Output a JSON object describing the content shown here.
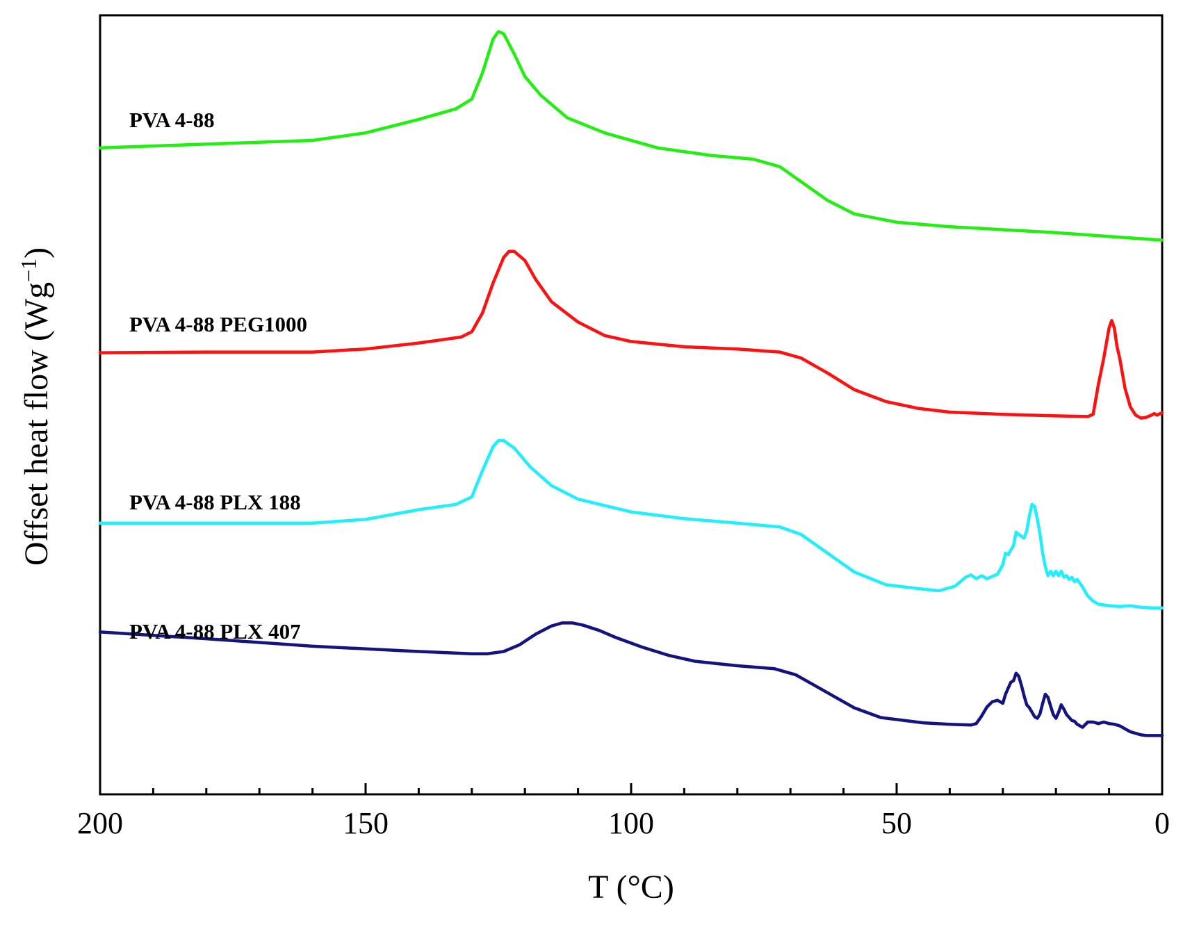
{
  "chart_data": {
    "type": "line",
    "title": "",
    "xlabel": "T (°C)",
    "ylabel": "Offset heat flow (Wg⁻¹)",
    "ylabel_base": "Offset heat flow (Wg",
    "ylabel_sup": "−1",
    "ylabel_end": ")",
    "xlim": [
      200,
      0
    ],
    "ylim": [
      0,
      1000
    ],
    "x_inverted": true,
    "xticks": [
      "200",
      "150",
      "100",
      "50",
      "0"
    ],
    "xtick_values": [
      200,
      150,
      100,
      50,
      0
    ],
    "minor_xtick_step": 10,
    "y_ticks_shown": false,
    "grid": false,
    "series": [
      {
        "name": "PVA 4-88",
        "color": "#22ee11",
        "points": [
          [
            200,
            840
          ],
          [
            180,
            845
          ],
          [
            160,
            850
          ],
          [
            150,
            860
          ],
          [
            140,
            878
          ],
          [
            133,
            892
          ],
          [
            130,
            905
          ],
          [
            128,
            940
          ],
          [
            126,
            985
          ],
          [
            125,
            995
          ],
          [
            124,
            992
          ],
          [
            122,
            965
          ],
          [
            120,
            935
          ],
          [
            117,
            910
          ],
          [
            112,
            880
          ],
          [
            105,
            860
          ],
          [
            95,
            840
          ],
          [
            85,
            830
          ],
          [
            77,
            825
          ],
          [
            72,
            815
          ],
          [
            68,
            795
          ],
          [
            63,
            770
          ],
          [
            58,
            752
          ],
          [
            50,
            741
          ],
          [
            40,
            735
          ],
          [
            30,
            731
          ],
          [
            20,
            727
          ],
          [
            10,
            722
          ],
          [
            0,
            717
          ]
        ]
      },
      {
        "name": "PVA 4-88 PEG1000",
        "color": "#ff1111",
        "points": [
          [
            200,
            567
          ],
          [
            180,
            568
          ],
          [
            160,
            568
          ],
          [
            150,
            572
          ],
          [
            140,
            580
          ],
          [
            132,
            588
          ],
          [
            130,
            595
          ],
          [
            128,
            620
          ],
          [
            126,
            660
          ],
          [
            124,
            694
          ],
          [
            123,
            702
          ],
          [
            122,
            702
          ],
          [
            120,
            690
          ],
          [
            118,
            665
          ],
          [
            115,
            635
          ],
          [
            110,
            608
          ],
          [
            105,
            590
          ],
          [
            100,
            582
          ],
          [
            90,
            575
          ],
          [
            80,
            572
          ],
          [
            72,
            568
          ],
          [
            68,
            560
          ],
          [
            63,
            540
          ],
          [
            58,
            518
          ],
          [
            52,
            502
          ],
          [
            46,
            493
          ],
          [
            40,
            488
          ],
          [
            30,
            485
          ],
          [
            20,
            483
          ],
          [
            14,
            482
          ],
          [
            13,
            485
          ],
          [
            12,
            525
          ],
          [
            11,
            560
          ],
          [
            10,
            600
          ],
          [
            9.5,
            610
          ],
          [
            9,
            600
          ],
          [
            8.5,
            575
          ],
          [
            8,
            560
          ],
          [
            7.5,
            540
          ],
          [
            7,
            520
          ],
          [
            6,
            495
          ],
          [
            5,
            484
          ],
          [
            4,
            480
          ],
          [
            3,
            481
          ],
          [
            2,
            484
          ],
          [
            1.5,
            486
          ],
          [
            1,
            484
          ],
          [
            0,
            487
          ]
        ]
      },
      {
        "name": "PVA 4-88 PLX 188",
        "color": "#22eeff",
        "points": [
          [
            200,
            340
          ],
          [
            180,
            340
          ],
          [
            160,
            340
          ],
          [
            150,
            345
          ],
          [
            140,
            358
          ],
          [
            133,
            365
          ],
          [
            130,
            375
          ],
          [
            128,
            410
          ],
          [
            126,
            442
          ],
          [
            125,
            450
          ],
          [
            124,
            450
          ],
          [
            122,
            440
          ],
          [
            119,
            415
          ],
          [
            115,
            390
          ],
          [
            110,
            372
          ],
          [
            100,
            355
          ],
          [
            90,
            346
          ],
          [
            80,
            340
          ],
          [
            72,
            335
          ],
          [
            68,
            325
          ],
          [
            63,
            300
          ],
          [
            58,
            275
          ],
          [
            52,
            258
          ],
          [
            45,
            252
          ],
          [
            42,
            250
          ],
          [
            39,
            256
          ],
          [
            37,
            268
          ],
          [
            36,
            271
          ],
          [
            35,
            266
          ],
          [
            34,
            270
          ],
          [
            33,
            266
          ],
          [
            31,
            272
          ],
          [
            30,
            285
          ],
          [
            29.5,
            300
          ],
          [
            29,
            298
          ],
          [
            28,
            310
          ],
          [
            27.5,
            328
          ],
          [
            27,
            325
          ],
          [
            26,
            320
          ],
          [
            25.5,
            330
          ],
          [
            25,
            350
          ],
          [
            24.5,
            365
          ],
          [
            24,
            362
          ],
          [
            23.5,
            345
          ],
          [
            23,
            325
          ],
          [
            22.5,
            300
          ],
          [
            22,
            282
          ],
          [
            21.5,
            270
          ],
          [
            21,
            276
          ],
          [
            20.5,
            270
          ],
          [
            20,
            276
          ],
          [
            19.5,
            270
          ],
          [
            19,
            276
          ],
          [
            18.5,
            268
          ],
          [
            18,
            270
          ],
          [
            17.5,
            265
          ],
          [
            17,
            268
          ],
          [
            16.5,
            262
          ],
          [
            16,
            265
          ],
          [
            15,
            255
          ],
          [
            14,
            243
          ],
          [
            13,
            236
          ],
          [
            12,
            232
          ],
          [
            10,
            230
          ],
          [
            8,
            229
          ],
          [
            6,
            230
          ],
          [
            4,
            228
          ],
          [
            2,
            227
          ],
          [
            0,
            227
          ]
        ]
      },
      {
        "name": "PVA 4-88 PLX 407",
        "color": "#141480",
        "points": [
          [
            200,
            195
          ],
          [
            180,
            186
          ],
          [
            160,
            176
          ],
          [
            140,
            169
          ],
          [
            130,
            166
          ],
          [
            127,
            166
          ],
          [
            124,
            169
          ],
          [
            121,
            178
          ],
          [
            118,
            192
          ],
          [
            115,
            203
          ],
          [
            113,
            207
          ],
          [
            111,
            207
          ],
          [
            109,
            204
          ],
          [
            106,
            197
          ],
          [
            103,
            188
          ],
          [
            98,
            175
          ],
          [
            93,
            164
          ],
          [
            88,
            156
          ],
          [
            80,
            150
          ],
          [
            73,
            146
          ],
          [
            69,
            138
          ],
          [
            66,
            126
          ],
          [
            62,
            110
          ],
          [
            58,
            94
          ],
          [
            53,
            81
          ],
          [
            45,
            74
          ],
          [
            40,
            72
          ],
          [
            36,
            71
          ],
          [
            35,
            73
          ],
          [
            34,
            83
          ],
          [
            33,
            95
          ],
          [
            32,
            102
          ],
          [
            31,
            104
          ],
          [
            30,
            100
          ],
          [
            29.5,
            112
          ],
          [
            29,
            120
          ],
          [
            28.5,
            128
          ],
          [
            28,
            130
          ],
          [
            27.5,
            140
          ],
          [
            27,
            136
          ],
          [
            26.5,
            124
          ],
          [
            26,
            110
          ],
          [
            25.5,
            98
          ],
          [
            25,
            94
          ],
          [
            24,
            82
          ],
          [
            23.5,
            80
          ],
          [
            23,
            86
          ],
          [
            22.5,
            100
          ],
          [
            22,
            112
          ],
          [
            21.5,
            108
          ],
          [
            21,
            96
          ],
          [
            20.5,
            85
          ],
          [
            20,
            80
          ],
          [
            19.5,
            88
          ],
          [
            19,
            98
          ],
          [
            18.5,
            92
          ],
          [
            18,
            85
          ],
          [
            17,
            77
          ],
          [
            16.5,
            76
          ],
          [
            16,
            72
          ],
          [
            15,
            68
          ],
          [
            14,
            75
          ],
          [
            13,
            75
          ],
          [
            12,
            73
          ],
          [
            11,
            75
          ],
          [
            10,
            73
          ],
          [
            9,
            72
          ],
          [
            8,
            70
          ],
          [
            7,
            66
          ],
          [
            6,
            62
          ],
          [
            5,
            60
          ],
          [
            4,
            58
          ],
          [
            3,
            57
          ],
          [
            2,
            57
          ],
          [
            1,
            57
          ],
          [
            0,
            57
          ]
        ]
      }
    ],
    "legend_placement": "inline-left"
  }
}
